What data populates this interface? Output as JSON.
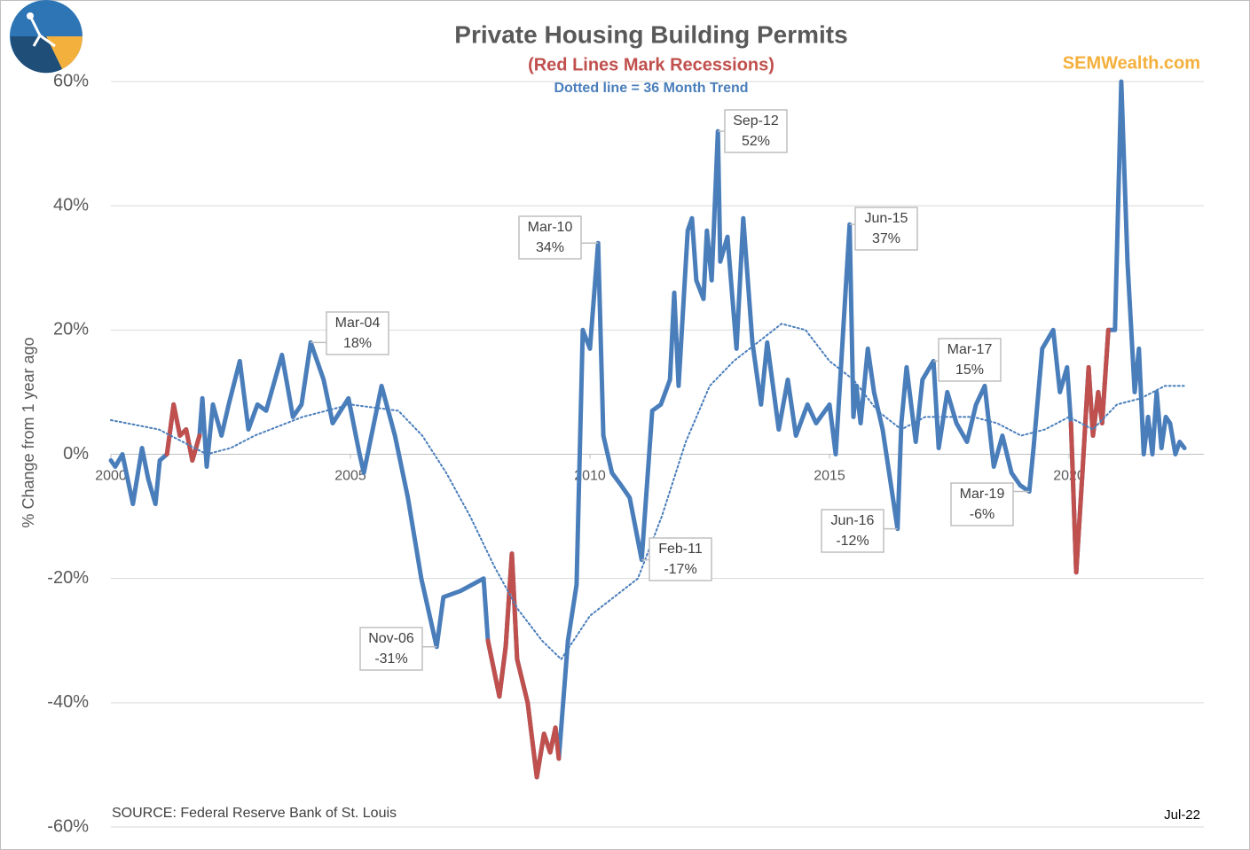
{
  "chart_data": {
    "type": "line",
    "title": "Private Housing Building Permits",
    "subtitle": "(Red Lines Mark Recessions)",
    "note": "Dotted line = 36 Month Trend",
    "brand": "SEMWealth.com",
    "y_label": "% Change from 1 year ago",
    "source": "SOURCE:  Federal Reserve Bank of St. Louis",
    "date_label": "Jul-22",
    "xlim": [
      2000,
      2022.9
    ],
    "xticks": [
      2000,
      2005,
      2010,
      2015,
      2020
    ],
    "ylim": [
      -60,
      60
    ],
    "yticks": [
      {
        "value": -60,
        "label": "-60%"
      },
      {
        "value": -40,
        "label": "-40%"
      },
      {
        "value": -20,
        "label": "-20%"
      },
      {
        "value": 0,
        "label": "0%"
      },
      {
        "value": 20,
        "label": "20%"
      },
      {
        "value": 40,
        "label": "40%"
      },
      {
        "value": 60,
        "label": "60%"
      }
    ],
    "grid": true,
    "series": [
      {
        "color": "#4a7ebb",
        "style": "solid",
        "x": [
          2000,
          2000.09,
          2000.24,
          2000.46,
          2000.65,
          2000.78,
          2000.93,
          2001.02,
          2001.17,
          2001.31,
          2001.44,
          2001.57,
          2001.7,
          2001.85,
          2001.91,
          2002.0,
          2002.13,
          2002.31,
          2002.46,
          2002.69,
          2002.87,
          2003.06,
          2003.24,
          2003.57,
          2003.8,
          2003.98,
          2004.17,
          2004.44,
          2004.63,
          2004.96,
          2005.19,
          2005.28,
          2005.65,
          2005.93,
          2006.2,
          2006.48,
          2006.8,
          2006.94,
          2007.3,
          2007.78,
          2007.87,
          2008.11,
          2008.24,
          2008.37,
          2008.48,
          2008.7,
          2008.89,
          2009.04,
          2009.17,
          2009.28,
          2009.35,
          2009.54,
          2009.72,
          2009.85,
          2010.0,
          2010.17,
          2010.28,
          2010.46,
          2010.65,
          2010.83,
          2011.08,
          2011.3,
          2011.48,
          2011.67,
          2011.76,
          2011.85,
          2012.04,
          2012.13,
          2012.22,
          2012.37,
          2012.44,
          2012.54,
          2012.67,
          2012.72,
          2012.87,
          2013.06,
          2013.2,
          2013.39,
          2013.57,
          2013.7,
          2013.94,
          2014.13,
          2014.3,
          2014.54,
          2014.72,
          2015.0,
          2015.13,
          2015.42,
          2015.5,
          2015.56,
          2015.65,
          2015.8,
          2015.93,
          2016.11,
          2016.42,
          2016.5,
          2016.61,
          2016.8,
          2016.94,
          2017.17,
          2017.28,
          2017.46,
          2017.65,
          2017.87,
          2018.06,
          2018.24,
          2018.43,
          2018.61,
          2018.8,
          2018.98,
          2019.17,
          2019.26,
          2019.44,
          2019.67,
          2019.81,
          2019.96,
          2020.04,
          2020.15,
          2020.28,
          2020.41,
          2020.5,
          2020.61,
          2020.69,
          2020.82,
          2020.96,
          2021.09,
          2021.22,
          2021.37,
          2021.46,
          2021.56,
          2021.65,
          2021.74,
          2021.83,
          2021.93,
          2022.02,
          2022.11,
          2022.22,
          2022.31,
          2022.41
        ],
        "values": [
          -1,
          -2,
          0,
          -8,
          1,
          -4,
          -8,
          -1,
          0,
          8,
          3,
          4,
          -1,
          3,
          9,
          -2,
          8,
          3,
          8,
          15,
          4,
          8,
          7,
          16,
          6,
          8,
          18,
          12,
          5,
          9,
          0,
          -3,
          11,
          3,
          -7,
          -20,
          -31,
          -23,
          -22,
          -20,
          -30,
          -39,
          -31,
          -16,
          -33,
          -40,
          -52,
          -45,
          -48,
          -44,
          -49,
          -30,
          -21,
          20,
          17,
          34,
          3,
          -3,
          -5,
          -7,
          -17,
          7,
          8,
          12,
          26,
          11,
          36,
          38,
          28,
          25,
          36,
          28,
          52,
          31,
          35,
          17,
          38,
          18,
          8,
          18,
          4,
          12,
          3,
          8,
          5,
          8,
          0,
          37,
          6,
          11,
          5,
          17,
          10,
          4,
          -12,
          5,
          14,
          2,
          12,
          15,
          1,
          10,
          5,
          2,
          8,
          11,
          -2,
          3,
          -3,
          -5,
          -6,
          1,
          17,
          20,
          10,
          14,
          5,
          -19,
          -3,
          14,
          3,
          10,
          5,
          20,
          20,
          60,
          31,
          10,
          17,
          0,
          6,
          0,
          10,
          1,
          6,
          5,
          0,
          2,
          1
        ]
      },
      {
        "color": "#c0504d",
        "style": "solid",
        "x": [
          2001.17,
          2001.31,
          2001.44,
          2001.57,
          2001.7,
          2001.85
        ],
        "values": [
          0,
          8,
          3,
          4,
          -1,
          3
        ]
      },
      {
        "color": "#c0504d",
        "style": "solid",
        "x": [
          2007.87,
          2008.11,
          2008.24,
          2008.37,
          2008.48,
          2008.7,
          2008.89,
          2009.04,
          2009.17,
          2009.28,
          2009.35
        ],
        "values": [
          -30,
          -39,
          -31,
          -16,
          -33,
          -40,
          -52,
          -45,
          -48,
          -44,
          -49
        ]
      },
      {
        "color": "#c0504d",
        "style": "solid",
        "x": [
          2020.04,
          2020.15,
          2020.28,
          2020.41,
          2020.5,
          2020.61,
          2020.69,
          2020.82
        ],
        "values": [
          5,
          -19,
          -3,
          14,
          3,
          10,
          5,
          20
        ]
      },
      {
        "color": "#4a7ebb",
        "style": "dotted",
        "x": [
          2000,
          2001,
          2001.5,
          2002,
          2002.5,
          2003,
          2004,
          2005,
          2006,
          2006.5,
          2007,
          2007.5,
          2008,
          2008.5,
          2009,
          2009.4,
          2010,
          2011,
          2011.5,
          2012,
          2012.5,
          2013,
          2013.5,
          2014,
          2014.5,
          2015,
          2015.5,
          2016,
          2016.5,
          2017,
          2017.5,
          2018,
          2018.5,
          2019,
          2019.5,
          2020,
          2020.5,
          2021,
          2021.5,
          2022,
          2022.4
        ],
        "values": [
          5.5,
          4,
          2,
          0,
          1,
          3,
          6,
          8,
          7,
          3,
          -3,
          -10,
          -18,
          -25,
          -30,
          -33,
          -26,
          -20,
          -10,
          2,
          11,
          15,
          18,
          21,
          20,
          15,
          12,
          7,
          4,
          6,
          6,
          6,
          5,
          3,
          4,
          6,
          4,
          8,
          9,
          11,
          11
        ]
      }
    ],
    "annotations": [
      {
        "label": "Mar-04",
        "value_label": "18%",
        "x": 2004.17,
        "y": 18
      },
      {
        "label": "Nov-06",
        "value_label": "-31%",
        "x": 2006.8,
        "y": -31
      },
      {
        "label": "Mar-10",
        "value_label": "34%",
        "x": 2010.17,
        "y": 34
      },
      {
        "label": "Feb-11",
        "value_label": "-17%",
        "x": 2011.08,
        "y": -17
      },
      {
        "label": "Sep-12",
        "value_label": "52%",
        "x": 2012.67,
        "y": 52
      },
      {
        "label": "Jun-15",
        "value_label": "37%",
        "x": 2015.42,
        "y": 37
      },
      {
        "label": "Jun-16",
        "value_label": "-12%",
        "x": 2016.42,
        "y": -12
      },
      {
        "label": "Mar-17",
        "value_label": "15%",
        "x": 2017.17,
        "y": 15
      },
      {
        "label": "Mar-19",
        "value_label": "-6%",
        "x": 2019.17,
        "y": -6
      }
    ]
  }
}
